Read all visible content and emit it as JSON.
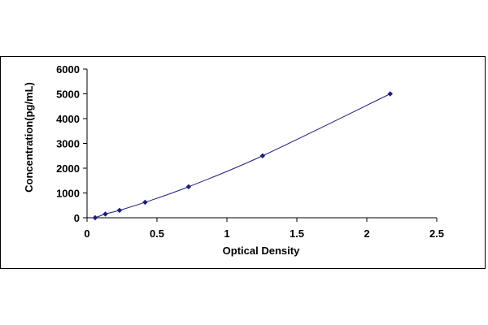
{
  "chart_data": {
    "type": "scatter",
    "title": "",
    "xlabel": "Optical Density",
    "ylabel": "Concentration(pg/mL)",
    "xlim": [
      0,
      2.5
    ],
    "ylim": [
      0,
      6000
    ],
    "x_ticks": [
      "0",
      "0.5",
      "1",
      "1.5",
      "2",
      "2.5"
    ],
    "y_ticks": [
      "0",
      "1000",
      "2000",
      "3000",
      "4000",
      "5000",
      "6000"
    ],
    "grid": false,
    "legend": "none",
    "series": [
      {
        "x": [
          0.058,
          0.131,
          0.232,
          0.415,
          0.726,
          1.255,
          2.167
        ],
        "y": [
          0,
          150,
          300,
          625,
          1250,
          2500,
          5000
        ],
        "marker": "diamond",
        "line": "smooth",
        "color": "#1f1f7a"
      }
    ]
  }
}
